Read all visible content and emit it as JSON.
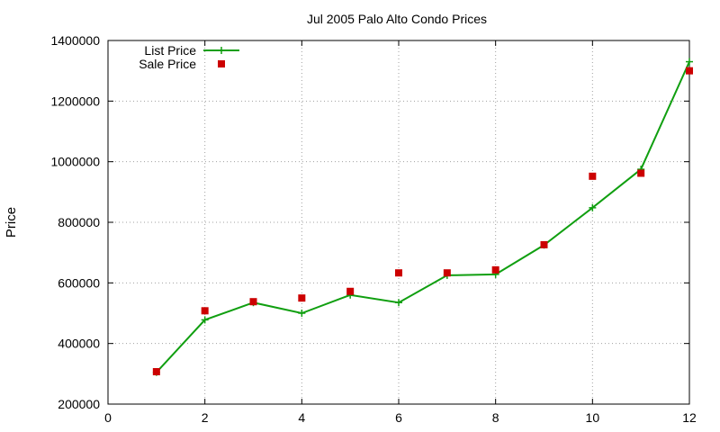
{
  "chart_data": {
    "type": "line",
    "title": "Jul 2005 Palo Alto Condo Prices",
    "xlabel": "",
    "ylabel": "Price",
    "xlim": [
      0,
      12
    ],
    "ylim": [
      200000,
      1400000
    ],
    "x_ticks": [
      0,
      2,
      4,
      6,
      8,
      10,
      12
    ],
    "y_ticks": [
      200000,
      400000,
      600000,
      800000,
      1000000,
      1200000,
      1400000
    ],
    "grid": true,
    "legend_position": "top-left",
    "series": [
      {
        "name": "List Price",
        "style": "line-with-plus-markers",
        "color": "#109f10",
        "x": [
          1,
          2,
          3,
          4,
          5,
          6,
          7,
          8,
          9,
          10,
          11,
          12
        ],
        "y": [
          305000,
          478000,
          535000,
          500000,
          560000,
          535000,
          625000,
          628000,
          725000,
          848000,
          975000,
          1330000
        ]
      },
      {
        "name": "Sale Price",
        "style": "square-markers",
        "color": "#cc0000",
        "x": [
          1,
          2,
          3,
          4,
          5,
          6,
          7,
          8,
          9,
          10,
          11,
          12
        ],
        "y": [
          307000,
          508000,
          538000,
          550000,
          572000,
          633000,
          633000,
          643000,
          726000,
          952000,
          962000,
          1300000
        ]
      }
    ]
  }
}
